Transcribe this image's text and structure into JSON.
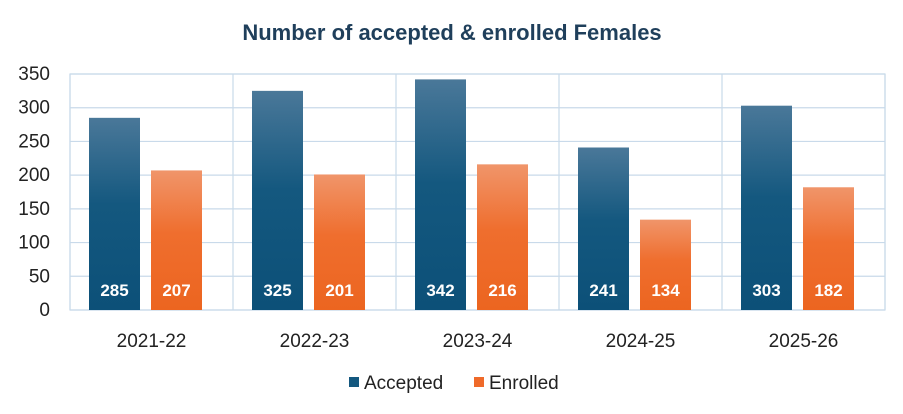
{
  "chart_data": {
    "type": "bar",
    "title": "Number of accepted & enrolled Females",
    "categories": [
      "2021-22",
      "2022-23",
      "2023-24",
      "2024-25",
      "2025-26"
    ],
    "series": [
      {
        "name": "Accepted",
        "values": [
          285,
          325,
          342,
          241,
          303
        ],
        "color": "#14587f"
      },
      {
        "name": "Enrolled",
        "values": [
          207,
          201,
          216,
          134,
          182
        ],
        "color": "#ef6a2a"
      }
    ],
    "ylim": [
      0,
      350
    ],
    "yticks": [
      "0",
      "50",
      "100",
      "150",
      "200",
      "250",
      "300",
      "350"
    ],
    "data_labels": true,
    "grid": true,
    "legend": "bottom"
  }
}
